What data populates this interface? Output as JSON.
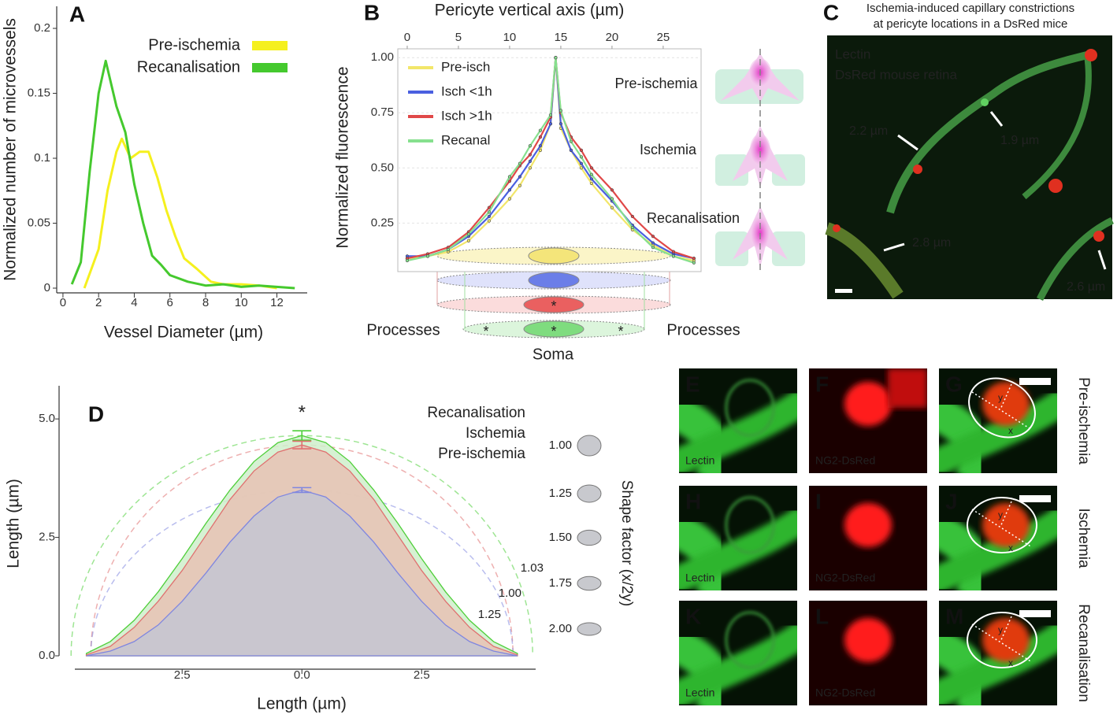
{
  "chart_data": [
    {
      "type": "line",
      "panel": "A",
      "x_label": "Vessel Diameter (µm)",
      "y_label": "Normalized number of microvessels",
      "xlim": [
        -0.35,
        13.7
      ],
      "xticks": [
        0,
        2,
        4,
        6,
        8,
        10,
        12
      ],
      "ylim": [
        0,
        0.217
      ],
      "yticks": [
        0,
        0.05,
        0.1,
        0.15,
        0.2
      ],
      "legend": "upper right",
      "series": [
        {
          "name": "Pre-ischemia",
          "color": "#f5f01e",
          "x": [
            1.2,
            2.0,
            2.5,
            3.0,
            3.3,
            3.8,
            4.3,
            4.8,
            5.3,
            5.8,
            6.3,
            6.8,
            7.5,
            8.3,
            9.0,
            10.0,
            11.0,
            12.0
          ],
          "values": [
            0,
            0.03,
            0.075,
            0.105,
            0.115,
            0.1,
            0.105,
            0.105,
            0.085,
            0.06,
            0.04,
            0.023,
            0.015,
            0.005,
            0.003,
            0.003,
            0.002,
            0
          ]
        },
        {
          "name": "Recanalisation",
          "color": "#45c92e",
          "x": [
            0.5,
            1.0,
            1.5,
            2.0,
            2.4,
            3.0,
            3.5,
            4.0,
            4.5,
            5.0,
            5.5,
            6.0,
            7.0,
            8.0,
            9.0,
            10.0,
            11.0,
            12.0,
            13.0
          ],
          "values": [
            0.003,
            0.02,
            0.09,
            0.15,
            0.175,
            0.14,
            0.12,
            0.08,
            0.05,
            0.025,
            0.018,
            0.01,
            0.005,
            0.002,
            0.003,
            0.001,
            0.002,
            0.001,
            0
          ]
        }
      ]
    },
    {
      "type": "line",
      "panel": "B",
      "x_label": "Pericyte vertical axis (µm)",
      "y_label": "Normalized fluorescence",
      "xaxis": "top",
      "markers": true,
      "grid": true,
      "legend": "upper left",
      "xlim": [
        -0.92,
        28.7
      ],
      "xticks": [
        0,
        5,
        10,
        15,
        20,
        25
      ],
      "ylim": [
        0.03,
        1.04
      ],
      "yticks": [
        0.25,
        {
          "value": 0.5,
          "label": "0.50"
        },
        0.75,
        {
          "value": 1,
          "label": "1.00"
        }
      ],
      "x": [
        0,
        2,
        4,
        6,
        8,
        10,
        11,
        12,
        13,
        14,
        14.5,
        15,
        16,
        17,
        18,
        20,
        22,
        24,
        26,
        28
      ],
      "series": [
        {
          "name": "Pre-isch",
          "color": "#f2e66a",
          "values": [
            0.09,
            0.1,
            0.12,
            0.17,
            0.26,
            0.36,
            0.42,
            0.5,
            0.58,
            0.7,
            1.0,
            0.68,
            0.58,
            0.5,
            0.43,
            0.32,
            0.22,
            0.15,
            0.1,
            0.08
          ]
        },
        {
          "name": "Isch <1h",
          "color": "#4a5fe0",
          "values": [
            0.1,
            0.1,
            0.13,
            0.19,
            0.28,
            0.4,
            0.46,
            0.53,
            0.6,
            0.7,
            1.0,
            0.7,
            0.58,
            0.52,
            0.45,
            0.35,
            0.24,
            0.16,
            0.11,
            0.09
          ]
        },
        {
          "name": "Isch >1h",
          "color": "#e04848",
          "values": [
            0.09,
            0.11,
            0.14,
            0.21,
            0.32,
            0.44,
            0.51,
            0.56,
            0.64,
            0.73,
            1.0,
            0.75,
            0.64,
            0.58,
            0.5,
            0.4,
            0.28,
            0.19,
            0.12,
            0.09
          ]
        },
        {
          "name": "Recanal",
          "color": "#86e08e",
          "values": [
            0.08,
            0.1,
            0.13,
            0.2,
            0.3,
            0.46,
            0.52,
            0.6,
            0.67,
            0.74,
            1.0,
            0.76,
            0.62,
            0.55,
            0.47,
            0.36,
            0.23,
            0.14,
            0.1,
            0.07
          ]
        }
      ],
      "annotations": [
        "Pre-ischemia",
        "Ischemia",
        "Recanalisation",
        "Processes",
        "Processes",
        "Soma",
        "*",
        "*",
        "*",
        "*"
      ]
    },
    {
      "type": "area",
      "panel": "D",
      "x_label": "Length (µm)",
      "y_label": "Length (µm)",
      "legend": "upper right",
      "xlim": [
        -4.74,
        4.88
      ],
      "xticks": [
        {
          "value": -2.5,
          "label": "2.5"
        },
        {
          "value": 0,
          "label": "0.0"
        },
        2.5
      ],
      "ylim": [
        0,
        5.7
      ],
      "yticks": [
        {
          "value": 0,
          "label": "0.0"
        },
        2.5,
        {
          "value": 5,
          "label": "5.0"
        }
      ],
      "x": [
        -4.5,
        -4,
        -3.5,
        -3,
        -2.5,
        -2,
        -1.5,
        -1,
        -0.5,
        0,
        0.5,
        1,
        1.5,
        2,
        2.5,
        3,
        3.5,
        4,
        4.5
      ],
      "series": [
        {
          "name": "Recanalisation",
          "color": "#4fcf3a",
          "error": 0.1,
          "shape_factor": 1.03,
          "values": [
            0.05,
            0.3,
            0.75,
            1.35,
            2.05,
            2.8,
            3.5,
            4.1,
            4.5,
            4.65,
            4.5,
            4.1,
            3.5,
            2.8,
            2.05,
            1.35,
            0.75,
            0.3,
            0.05
          ]
        },
        {
          "name": "Ischemia",
          "color": "#e07070",
          "error": 0.08,
          "shape_factor": {
            "value": 1,
            "label": "1.00"
          },
          "values": [
            0.02,
            0.2,
            0.6,
            1.15,
            1.8,
            2.55,
            3.3,
            3.9,
            4.3,
            4.45,
            4.3,
            3.9,
            3.3,
            2.55,
            1.8,
            1.15,
            0.6,
            0.2,
            0.02
          ]
        },
        {
          "name": "Pre-ischemia",
          "color": "#7f86e0",
          "error": 0.05,
          "shape_factor": 1.25,
          "values": [
            0,
            0.1,
            0.3,
            0.65,
            1.15,
            1.75,
            2.4,
            2.95,
            3.35,
            3.5,
            3.35,
            2.95,
            2.4,
            1.75,
            1.15,
            0.65,
            0.3,
            0.1,
            0
          ]
        }
      ],
      "annotations": [
        "*"
      ],
      "shape_factor_label": "Shape factor (x/2y)",
      "shape_factor_ticks": [
        {
          "value": 1,
          "label": "1.00"
        },
        1.25,
        {
          "value": 1.5,
          "label": "1.50"
        },
        1.75,
        {
          "value": 2,
          "label": "2.00"
        }
      ]
    }
  ],
  "panel_c": {
    "letter": "C",
    "title": [
      "Ischemia-induced capillary constrictions",
      "at pericyte locations in a DsRed mice"
    ],
    "legend": [
      "Lectin",
      "DsRed mouse retina"
    ],
    "measurements": [
      "2.2 µm",
      "1.9 µm",
      "2.8 µm",
      "2.6 µm"
    ]
  },
  "image_panels": {
    "rows": [
      {
        "label": "Pre-ischemia",
        "tiles": [
          {
            "letter": "E",
            "caption": "Lectin"
          },
          {
            "letter": "F",
            "caption": "NG2-DsRed"
          },
          {
            "letter": "G",
            "axes": [
              "y",
              "x"
            ]
          }
        ]
      },
      {
        "label": "Ischemia",
        "tiles": [
          {
            "letter": "H",
            "caption": "Lectin"
          },
          {
            "letter": "I",
            "caption": "NG2-DsRed"
          },
          {
            "letter": "J",
            "axes": [
              "y",
              "x"
            ]
          }
        ]
      },
      {
        "label": "Recanalisation",
        "tiles": [
          {
            "letter": "K",
            "caption": "Lectin"
          },
          {
            "letter": "L",
            "caption": "NG2-DsRed"
          },
          {
            "letter": "M",
            "axes": [
              "y",
              "x"
            ]
          }
        ]
      }
    ]
  }
}
